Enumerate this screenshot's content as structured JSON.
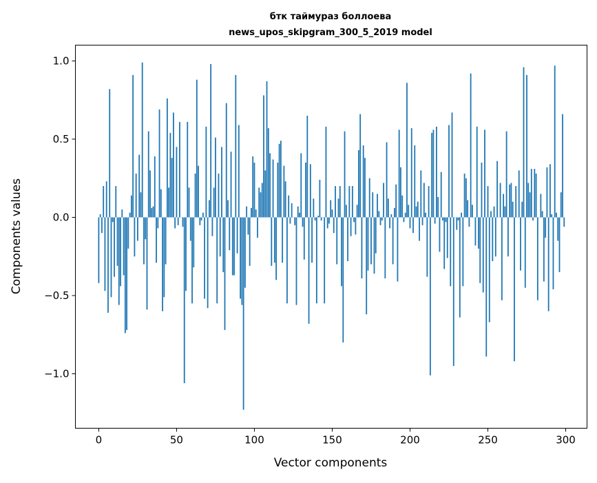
{
  "chart_data": {
    "type": "bar",
    "title_line1": "бтк таймураз боллоева",
    "title_line2": "news_upos_skipgram_300_5_2019 model",
    "xlabel": "Vector components",
    "ylabel": "Components values",
    "xlim": [
      -15,
      313.7
    ],
    "ylim": [
      -1.348,
      1.101
    ],
    "xticks": [
      0,
      50,
      100,
      150,
      200,
      250,
      300
    ],
    "xtick_labels": [
      "0",
      "50",
      "100",
      "150",
      "200",
      "250",
      "300"
    ],
    "yticks": [
      1.0,
      0.5,
      0.0,
      -0.5,
      -1.0
    ],
    "ytick_labels": [
      "1.0",
      "0.5",
      "0.0",
      "−0.5",
      "−1.0"
    ],
    "bar_color": "#1f77b4",
    "grid": false,
    "values": [
      -0.42,
      0.02,
      -0.1,
      0.2,
      -0.47,
      0.23,
      -0.61,
      0.82,
      -0.51,
      -0.03,
      -0.38,
      0.2,
      -0.31,
      -0.56,
      -0.44,
      0.05,
      -0.37,
      -0.74,
      -0.72,
      -0.2,
      0.03,
      0.14,
      0.91,
      -0.25,
      0.28,
      -0.15,
      0.4,
      0.16,
      0.99,
      -0.3,
      -0.14,
      -0.59,
      0.55,
      0.3,
      0.06,
      0.07,
      0.39,
      -0.29,
      -0.07,
      0.69,
      0.18,
      -0.6,
      -0.51,
      -0.3,
      0.76,
      0.19,
      0.54,
      0.38,
      0.67,
      -0.07,
      0.45,
      -0.05,
      0.61,
      0.0,
      -0.06,
      -1.06,
      -0.47,
      0.61,
      0.19,
      -0.15,
      -0.55,
      -0.32,
      0.28,
      0.88,
      0.33,
      -0.05,
      -0.02,
      0.03,
      -0.52,
      0.58,
      -0.58,
      0.11,
      0.98,
      -0.12,
      0.19,
      0.51,
      -0.55,
      0.28,
      -0.25,
      0.45,
      -0.35,
      -0.72,
      0.73,
      0.11,
      -0.21,
      0.42,
      -0.37,
      -0.37,
      0.91,
      -0.23,
      0.59,
      -0.52,
      -0.56,
      -1.23,
      -0.45,
      0.07,
      -0.11,
      -0.31,
      0.06,
      0.39,
      0.35,
      0.05,
      -0.13,
      0.19,
      0.16,
      0.22,
      0.78,
      0.3,
      0.87,
      0.57,
      0.41,
      -0.31,
      0.37,
      -0.29,
      -0.4,
      0.35,
      0.47,
      0.49,
      -0.29,
      0.33,
      0.23,
      -0.55,
      0.14,
      -0.04,
      0.09,
      0.0,
      -0.05,
      -0.56,
      0.07,
      0.03,
      0.41,
      -0.06,
      -0.27,
      0.35,
      0.65,
      -0.68,
      0.34,
      -0.29,
      0.12,
      -0.02,
      -0.55,
      0.01,
      0.24,
      -0.02,
      0.0,
      -0.55,
      0.58,
      -0.07,
      -0.04,
      0.11,
      0.05,
      -0.1,
      0.2,
      -0.3,
      0.12,
      0.2,
      -0.44,
      -0.8,
      0.55,
      0.08,
      -0.28,
      0.2,
      -0.12,
      0.2,
      -0.03,
      -0.11,
      0.08,
      0.43,
      0.66,
      -0.39,
      0.46,
      0.38,
      -0.62,
      -0.34,
      0.25,
      -0.3,
      0.16,
      -0.36,
      -0.23,
      0.15,
      0.04,
      -0.05,
      -0.02,
      0.22,
      -0.39,
      0.48,
      0.12,
      -0.07,
      0.02,
      -0.3,
      0.06,
      0.21,
      -0.41,
      0.56,
      0.32,
      0.14,
      -0.03,
      0.03,
      0.86,
      0.08,
      -0.07,
      0.57,
      -0.1,
      0.46,
      0.07,
      0.1,
      -0.15,
      0.3,
      -0.05,
      0.22,
      0.03,
      -0.38,
      0.2,
      -1.01,
      0.54,
      0.56,
      -0.04,
      0.58,
      0.13,
      -0.22,
      0.29,
      -0.02,
      -0.33,
      -0.03,
      -0.26,
      0.59,
      -0.44,
      0.67,
      -0.95,
      0.0,
      -0.08,
      -0.02,
      -0.64,
      0.03,
      -0.44,
      0.28,
      0.25,
      0.11,
      -0.06,
      0.92,
      0.08,
      0.0,
      -0.18,
      0.58,
      -0.2,
      -0.42,
      0.35,
      -0.48,
      0.56,
      -0.89,
      0.2,
      -0.67,
      0.04,
      -0.28,
      0.07,
      -0.25,
      0.36,
      0.0,
      0.22,
      -0.53,
      0.15,
      0.07,
      0.55,
      -0.25,
      0.21,
      0.22,
      0.1,
      -0.92,
      0.2,
      0.0,
      0.3,
      -0.34,
      0.1,
      0.96,
      -0.45,
      0.91,
      0.22,
      0.16,
      0.31,
      -0.02,
      0.31,
      0.28,
      -0.53,
      0.0,
      0.15,
      0.04,
      -0.41,
      -0.13,
      0.32,
      -0.6,
      0.34,
      0.02,
      -0.46,
      0.97,
      0.03,
      -0.15,
      -0.35,
      0.16,
      0.66,
      -0.06
    ]
  }
}
